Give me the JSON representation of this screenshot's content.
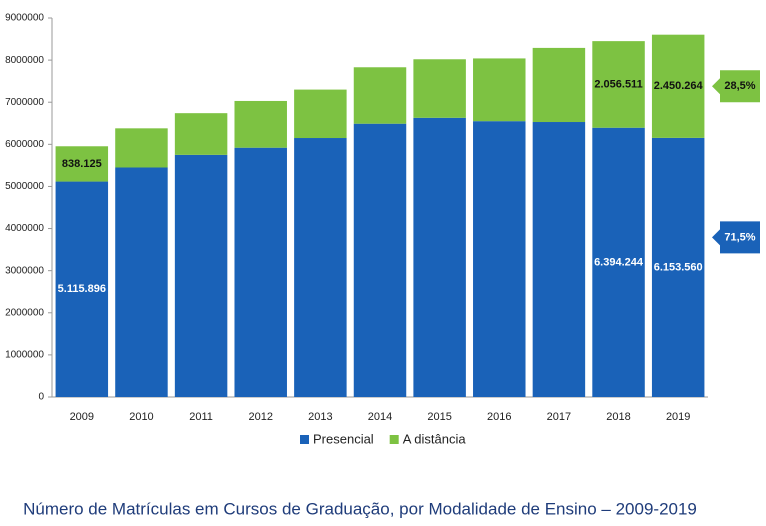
{
  "chart_data": {
    "type": "stacked-bar",
    "title": "Número de Matrículas em Cursos de Graduação, por Modalidade de Ensino – 2009-2019",
    "categories": [
      "2009",
      "2010",
      "2011",
      "2012",
      "2013",
      "2014",
      "2015",
      "2016",
      "2017",
      "2018",
      "2019"
    ],
    "series": [
      {
        "name": "Presencial",
        "color": "#1a62b8",
        "values": [
          5115896,
          5450000,
          5750000,
          5920000,
          6150000,
          6490000,
          6630000,
          6550000,
          6530000,
          6394244,
          6153560
        ],
        "value_labels": [
          "5.115.896",
          null,
          null,
          null,
          null,
          null,
          null,
          null,
          null,
          "6.394.244",
          "6.153.560"
        ],
        "share_label": "71,5%"
      },
      {
        "name": "A distância",
        "color": "#7dc242",
        "values": [
          838125,
          930000,
          990000,
          1110000,
          1150000,
          1340000,
          1390000,
          1490000,
          1760000,
          2056511,
          2450264
        ],
        "value_labels": [
          "838.125",
          null,
          null,
          null,
          null,
          null,
          null,
          null,
          null,
          "2.056.511",
          "2.450.264"
        ],
        "share_label": "28,5%"
      }
    ],
    "ylim": [
      0,
      9000000
    ],
    "yticks": [
      0,
      1000000,
      2000000,
      3000000,
      4000000,
      5000000,
      6000000,
      7000000,
      8000000,
      9000000
    ],
    "legend": "bottom"
  }
}
